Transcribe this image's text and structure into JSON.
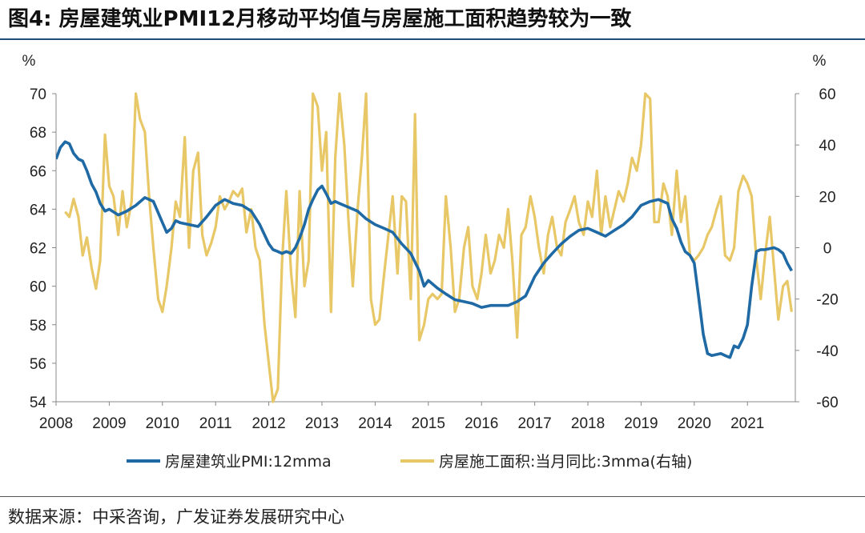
{
  "title": "图4:  房屋建筑业PMI12月移动平均值与房屋施工面积趋势较为一致",
  "source": "数据来源：中采咨询，广发证券发展研究中心",
  "colors": {
    "series1": "#1f6aa5",
    "series2": "#e8c766",
    "axis": "#888888",
    "title_rule": "#1f4e79"
  },
  "chart_data": {
    "type": "line",
    "left_unit": "%",
    "right_unit": "%",
    "xlim": [
      2008,
      2021.9
    ],
    "ylim_left": [
      54,
      70
    ],
    "ylim_right": [
      -60,
      60
    ],
    "left_ticks": [
      "70",
      "68",
      "66",
      "64",
      "62",
      "60",
      "58",
      "56",
      "54"
    ],
    "right_ticks": [
      "60",
      "40",
      "20",
      "0",
      "-20",
      "-40",
      "-60"
    ],
    "x_ticks": [
      "2008",
      "2009",
      "2010",
      "2011",
      "2012",
      "2013",
      "2014",
      "2015",
      "2016",
      "2017",
      "2018",
      "2019",
      "2020",
      "2021"
    ],
    "series": [
      {
        "name": "房屋建筑业PMI:12mma",
        "axis": "left",
        "x": [
          2008.0,
          2008.08,
          2008.17,
          2008.25,
          2008.33,
          2008.42,
          2008.5,
          2008.58,
          2008.67,
          2008.75,
          2008.83,
          2008.92,
          2009.0,
          2009.17,
          2009.33,
          2009.5,
          2009.67,
          2009.83,
          2010.0,
          2010.08,
          2010.17,
          2010.25,
          2010.33,
          2010.5,
          2010.67,
          2010.83,
          2011.0,
          2011.17,
          2011.33,
          2011.5,
          2011.67,
          2011.83,
          2012.0,
          2012.08,
          2012.17,
          2012.25,
          2012.33,
          2012.42,
          2012.5,
          2012.58,
          2012.67,
          2012.75,
          2012.83,
          2012.92,
          2013.0,
          2013.08,
          2013.17,
          2013.25,
          2013.33,
          2013.5,
          2013.67,
          2013.83,
          2014.0,
          2014.17,
          2014.33,
          2014.5,
          2014.67,
          2014.83,
          2014.92,
          2015.0,
          2015.17,
          2015.33,
          2015.5,
          2015.67,
          2015.83,
          2016.0,
          2016.17,
          2016.33,
          2016.5,
          2016.67,
          2016.83,
          2017.0,
          2017.17,
          2017.33,
          2017.5,
          2017.67,
          2017.83,
          2018.0,
          2018.17,
          2018.33,
          2018.5,
          2018.67,
          2018.83,
          2019.0,
          2019.17,
          2019.33,
          2019.5,
          2019.58,
          2019.67,
          2019.75,
          2019.83,
          2019.92,
          2020.0,
          2020.08,
          2020.17,
          2020.25,
          2020.33,
          2020.5,
          2020.58,
          2020.67,
          2020.75,
          2020.83,
          2020.92,
          2021.0,
          2021.08,
          2021.17,
          2021.25,
          2021.33,
          2021.5,
          2021.58,
          2021.67,
          2021.75,
          2021.83
        ],
        "values": [
          66.6,
          67.2,
          67.5,
          67.4,
          66.9,
          66.6,
          66.5,
          66.0,
          65.3,
          64.9,
          64.3,
          63.9,
          64.0,
          63.7,
          63.9,
          64.2,
          64.6,
          64.4,
          63.3,
          62.8,
          63.0,
          63.4,
          63.3,
          63.2,
          63.1,
          63.6,
          64.2,
          64.5,
          64.3,
          64.2,
          63.9,
          63.2,
          62.2,
          61.9,
          61.8,
          61.7,
          61.8,
          61.7,
          62.0,
          62.5,
          63.2,
          64.0,
          64.5,
          65.0,
          65.2,
          64.8,
          64.3,
          64.4,
          64.3,
          64.1,
          63.9,
          63.5,
          63.2,
          63.0,
          62.8,
          62.2,
          61.7,
          60.8,
          60.0,
          60.3,
          59.9,
          59.6,
          59.3,
          59.2,
          59.1,
          58.9,
          59.0,
          59.0,
          59.0,
          59.2,
          59.5,
          60.5,
          61.2,
          61.7,
          62.2,
          62.6,
          62.9,
          63.0,
          62.8,
          62.6,
          62.9,
          63.2,
          63.6,
          64.2,
          64.4,
          64.5,
          64.3,
          63.5,
          63.0,
          62.3,
          61.8,
          61.6,
          61.2,
          59.5,
          57.5,
          56.5,
          56.4,
          56.5,
          56.4,
          56.3,
          56.9,
          56.8,
          57.3,
          58.0,
          60.0,
          61.8,
          61.9,
          61.9,
          62.0,
          61.9,
          61.7,
          61.2,
          60.8
        ]
      },
      {
        "name": "房屋施工面积:当月同比:3mma(右轴)",
        "axis": "right",
        "x": [
          2008.17,
          2008.25,
          2008.33,
          2008.42,
          2008.5,
          2008.58,
          2008.67,
          2008.75,
          2008.83,
          2008.92,
          2009.0,
          2009.08,
          2009.17,
          2009.25,
          2009.33,
          2009.42,
          2009.5,
          2009.58,
          2009.67,
          2009.75,
          2009.83,
          2009.92,
          2010.0,
          2010.08,
          2010.17,
          2010.25,
          2010.33,
          2010.42,
          2010.5,
          2010.58,
          2010.67,
          2010.75,
          2010.83,
          2010.92,
          2011.0,
          2011.08,
          2011.17,
          2011.25,
          2011.33,
          2011.42,
          2011.5,
          2011.58,
          2011.67,
          2011.75,
          2011.83,
          2011.92,
          2012.0,
          2012.08,
          2012.17,
          2012.25,
          2012.33,
          2012.42,
          2012.5,
          2012.58,
          2012.67,
          2012.75,
          2012.83,
          2012.92,
          2013.0,
          2013.08,
          2013.17,
          2013.25,
          2013.33,
          2013.42,
          2013.5,
          2013.58,
          2013.67,
          2013.75,
          2013.83,
          2013.92,
          2014.0,
          2014.08,
          2014.17,
          2014.25,
          2014.33,
          2014.42,
          2014.5,
          2014.58,
          2014.67,
          2014.75,
          2014.83,
          2014.92,
          2015.0,
          2015.08,
          2015.17,
          2015.25,
          2015.33,
          2015.42,
          2015.5,
          2015.58,
          2015.67,
          2015.75,
          2015.83,
          2015.92,
          2016.0,
          2016.08,
          2016.17,
          2016.25,
          2016.33,
          2016.42,
          2016.5,
          2016.58,
          2016.67,
          2016.75,
          2016.83,
          2016.92,
          2017.0,
          2017.08,
          2017.17,
          2017.25,
          2017.33,
          2017.42,
          2017.5,
          2017.58,
          2017.67,
          2017.75,
          2017.83,
          2017.92,
          2018.0,
          2018.08,
          2018.17,
          2018.25,
          2018.33,
          2018.42,
          2018.5,
          2018.58,
          2018.67,
          2018.75,
          2018.83,
          2018.92,
          2019.0,
          2019.08,
          2019.17,
          2019.25,
          2019.33,
          2019.42,
          2019.5,
          2019.58,
          2019.67,
          2019.75,
          2019.83,
          2019.92,
          2020.0,
          2020.08,
          2020.17,
          2020.25,
          2020.33,
          2020.42,
          2020.5,
          2020.58,
          2020.67,
          2020.75,
          2020.83,
          2020.92,
          2021.0,
          2021.08,
          2021.17,
          2021.25,
          2021.33,
          2021.42,
          2021.5,
          2021.58,
          2021.67,
          2021.75,
          2021.83
        ],
        "values": [
          14,
          12,
          19,
          12,
          -3,
          4,
          -8,
          -16,
          -5,
          44,
          24,
          20,
          5,
          22,
          8,
          18,
          60,
          50,
          45,
          20,
          0,
          -20,
          -25,
          -15,
          0,
          18,
          12,
          43,
          0,
          30,
          37,
          5,
          -3,
          2,
          8,
          20,
          15,
          18,
          22,
          20,
          23,
          6,
          15,
          0,
          -5,
          -30,
          -45,
          -60,
          -55,
          -5,
          22,
          -10,
          -27,
          22,
          -15,
          -5,
          60,
          55,
          30,
          45,
          -25,
          35,
          60,
          40,
          10,
          -15,
          15,
          35,
          60,
          -20,
          -30,
          -28,
          -10,
          5,
          20,
          -10,
          20,
          18,
          -20,
          52,
          -36,
          -30,
          -20,
          -18,
          -20,
          -18,
          20,
          0,
          -25,
          -20,
          0,
          8,
          -15,
          -20,
          -10,
          5,
          -10,
          -5,
          5,
          0,
          15,
          -5,
          -35,
          5,
          8,
          20,
          12,
          0,
          -10,
          5,
          12,
          0,
          -3,
          10,
          15,
          20,
          10,
          5,
          18,
          12,
          30,
          5,
          20,
          8,
          15,
          22,
          18,
          25,
          35,
          30,
          40,
          60,
          58,
          10,
          10,
          25,
          20,
          5,
          30,
          10,
          20,
          -3,
          -5,
          -3,
          0,
          5,
          8,
          15,
          20,
          -3,
          -5,
          0,
          22,
          28,
          25,
          20,
          -5,
          -20,
          -3,
          12,
          -8,
          -28,
          -15,
          -13,
          -25
        ]
      }
    ]
  }
}
